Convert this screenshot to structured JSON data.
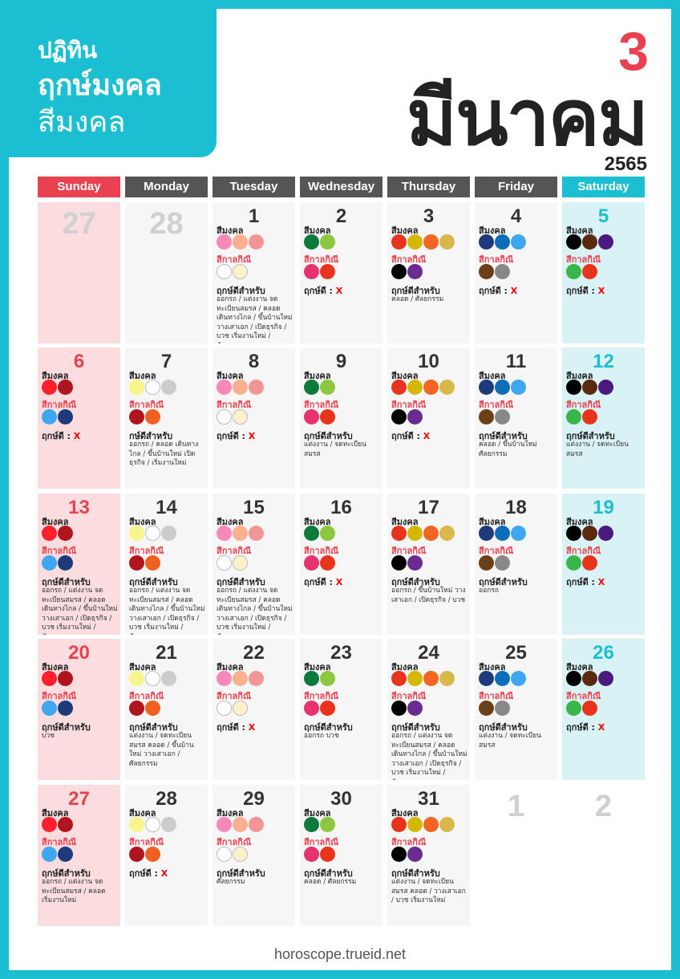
{
  "header": {
    "line1": "ปฏิทิน",
    "line2": "ฤกษ์มงคล",
    "line3": "สีมงคล",
    "month_number": "3",
    "month_name": "มีนาคม",
    "year": "2565"
  },
  "weekdays": [
    {
      "label": "Sunday",
      "color": "#e9414f"
    },
    {
      "label": "Monday",
      "color": "#555555"
    },
    {
      "label": "Tuesday",
      "color": "#555555"
    },
    {
      "label": "Wednesday",
      "color": "#555555"
    },
    {
      "label": "Thursday",
      "color": "#555555"
    },
    {
      "label": "Friday",
      "color": "#555555"
    },
    {
      "label": "Saturday",
      "color": "#1bbfd1"
    }
  ],
  "labels": {
    "lucky": "สีมงคล",
    "unlucky": "สีกาลกิณี",
    "auspice_none": "ฤกษ์ดี :",
    "auspice_for": "ฤกษ์ดีสำหรับ",
    "x_mark": "X"
  },
  "day_colors": {
    "sun": {
      "lucky": [
        "#ff1f2d",
        "#b0141c"
      ],
      "unlucky": [
        "#3ea7f0",
        "#1e3a7a"
      ]
    },
    "mon": {
      "lucky": [
        "#f8f58c",
        "#ffffff",
        "#cccccc"
      ],
      "unlucky": [
        "#b0141c",
        "#f06020"
      ]
    },
    "tue": {
      "lucky": [
        "#f788b8",
        "#f9b08f",
        "#f29595"
      ],
      "unlucky": [
        "#ffffff",
        "#fff1cc"
      ]
    },
    "wed": {
      "lucky": [
        "#0b7a3b",
        "#8dc63f"
      ],
      "unlucky": [
        "#e6336f",
        "#e8341c"
      ]
    },
    "thu": {
      "lucky": [
        "#e8341c",
        "#d4b800",
        "#f26522",
        "#d8b84a"
      ],
      "unlucky": [
        "#000000",
        "#6a2c91"
      ]
    },
    "fri": {
      "lucky": [
        "#1e3a7a",
        "#0a6fb8",
        "#3ea7f0"
      ],
      "unlucky": [
        "#6b3f18",
        "#888888"
      ]
    },
    "sat": {
      "lucky": [
        "#000000",
        "#5a2a0e",
        "#4b1a7f"
      ],
      "unlucky": [
        "#3ab54a",
        "#e8341c"
      ]
    }
  },
  "days": [
    {
      "num": "27",
      "dow": "sun",
      "faded": true
    },
    {
      "num": "28",
      "dow": "mon",
      "faded": true
    },
    {
      "num": "1",
      "dow": "tue",
      "auspice": "for",
      "detail": "ออกรถ / แต่งงาน จดทะเบียนสมรส / คลอด เดินทางไกล / ขึ้นบ้านใหม่ วางเสาเอก / เปิดธุรกิจ / บวช เริ่มงานใหม่ / ศัลยกรรม"
    },
    {
      "num": "2",
      "dow": "wed",
      "auspice": "none"
    },
    {
      "num": "3",
      "dow": "thu",
      "auspice": "for",
      "detail": "คลอด / ศัลยกรรม"
    },
    {
      "num": "4",
      "dow": "fri",
      "auspice": "none"
    },
    {
      "num": "5",
      "dow": "sat",
      "auspice": "none"
    },
    {
      "num": "6",
      "dow": "sun",
      "auspice": "none"
    },
    {
      "num": "7",
      "dow": "mon",
      "auspice": "for",
      "auspice_label": "กษ์ดีสำหรับ",
      "detail": "ออกรถ / คลอด เดินทางไกล / ขึ้นบ้านใหม่ เปิดธุรกิจ / เริ่มงานใหม่"
    },
    {
      "num": "8",
      "dow": "tue",
      "auspice": "none"
    },
    {
      "num": "9",
      "dow": "wed",
      "auspice": "for",
      "detail": "แต่งงาน / จดทะเบียนสมรส"
    },
    {
      "num": "10",
      "dow": "thu",
      "auspice": "none"
    },
    {
      "num": "11",
      "dow": "fri",
      "auspice": "for",
      "detail": "คลอด / ขึ้นบ้านใหม่ ศัลยกรรม"
    },
    {
      "num": "12",
      "dow": "sat",
      "auspice": "for",
      "detail": "แต่งงาน / จดทะเบียนสมรส"
    },
    {
      "num": "13",
      "dow": "sun",
      "auspice": "for",
      "detail": "ออกรถ / แต่งงาน จดทะเบียนสมรส / คลอด เดินทางไกล / ขึ้นบ้านใหม่ วางเสาเอก / เปิดธุรกิจ / บวช เริ่มงานใหม่ / ศัลยกรรม"
    },
    {
      "num": "14",
      "dow": "mon",
      "auspice": "for",
      "detail": "ออกรถ / แต่งงาน จดทะเบียนสมรส / คลอด เดินทางไกล / ขึ้นบ้านใหม่ วางเสาเอก / เปิดธุรกิจ / บวช เริ่มงานใหม่ / ศัลยกรรม"
    },
    {
      "num": "15",
      "dow": "tue",
      "auspice": "for",
      "detail": "ออกรถ / แต่งงาน จดทะเบียนสมรส / คลอด เดินทางไกล / ขึ้นบ้านใหม่ วางเสาเอก / เปิดธุรกิจ / บวช เริ่มงานใหม่ / ศัลยกรรม"
    },
    {
      "num": "16",
      "dow": "wed",
      "auspice": "none"
    },
    {
      "num": "17",
      "dow": "thu",
      "auspice": "for",
      "detail": "ออกรถ / ขึ้นบ้านใหม่ วางเสาเอก / เปิดธุรกิจ / บวช"
    },
    {
      "num": "18",
      "dow": "fri",
      "auspice": "for",
      "detail": "ออกรถ"
    },
    {
      "num": "19",
      "dow": "sat",
      "auspice": "none"
    },
    {
      "num": "20",
      "dow": "sun",
      "auspice": "for",
      "detail": "บวช"
    },
    {
      "num": "21",
      "dow": "mon",
      "auspice": "for",
      "detail": "แต่งงาน / จดทะเบียนสมรส คลอด / ขึ้นบ้านใหม่ วางเสาเอก / ศัลยกรรม"
    },
    {
      "num": "22",
      "dow": "tue",
      "auspice": "none"
    },
    {
      "num": "23",
      "dow": "wed",
      "auspice": "for",
      "detail": "ออกรถ บวช"
    },
    {
      "num": "24",
      "dow": "thu",
      "auspice": "for",
      "detail": "ออกรถ / แต่งงาน จดทะเบียนสมรส / คลอด เดินทางไกล / ขึ้นบ้านใหม่ วางเสาเอก / เปิดธุรกิจ / บวช เริ่มงานใหม่ / ศัลยกรรม"
    },
    {
      "num": "25",
      "dow": "fri",
      "auspice": "for",
      "detail": "แต่งงาน / จดทะเบียนสมรส"
    },
    {
      "num": "26",
      "dow": "sat",
      "auspice": "none"
    },
    {
      "num": "27",
      "dow": "sun",
      "auspice": "for",
      "detail": "ออกรถ / แต่งงาน จดทะเบียนสมรส / คลอด เริ่มงานใหม่"
    },
    {
      "num": "28",
      "dow": "mon",
      "auspice": "none"
    },
    {
      "num": "29",
      "dow": "tue",
      "auspice": "for",
      "detail": "ศัลยกรรม"
    },
    {
      "num": "30",
      "dow": "wed",
      "auspice": "for",
      "detail": "คลอด / ศัลยกรรม"
    },
    {
      "num": "31",
      "dow": "thu",
      "auspice": "for",
      "detail": "แต่งงาน / จดทะเบียนสมรส คลอด / วางเสาเอก / บวช เริ่มงานใหม่"
    },
    {
      "num": "1",
      "dow": "fri",
      "faded": true,
      "blank": true
    },
    {
      "num": "2",
      "dow": "sat",
      "faded": true,
      "blank": true
    }
  ],
  "footer": "horoscope.trueid.net"
}
